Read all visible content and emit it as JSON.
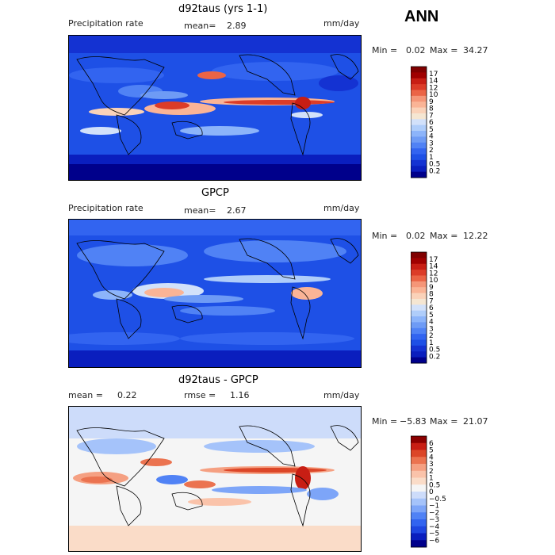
{
  "season": "ANN",
  "colors": {
    "precip_scale": [
      "#00008b",
      "#0a1ebe",
      "#1432d2",
      "#1e50e6",
      "#3264f0",
      "#5082f5",
      "#6e9bf5",
      "#8cb4fa",
      "#afcdfa",
      "#d2e1fa",
      "#f5e6d2",
      "#fad2b9",
      "#fab496",
      "#f59678",
      "#eb6446",
      "#dc3c28",
      "#c81e14",
      "#a00000",
      "#800000"
    ],
    "diff_scale": [
      "#00008b",
      "#0a1ebe",
      "#1e46e1",
      "#3264f0",
      "#5082f5",
      "#7da5f8",
      "#a5c3fa",
      "#cddcfa",
      "#f5f5f5",
      "#fadcc8",
      "#fac3aa",
      "#f5a082",
      "#eb7350",
      "#dc4628",
      "#c81e14",
      "#8b0000"
    ]
  },
  "panels": [
    {
      "title": "d92taus (yrs 1-1)",
      "left_label": "Precipitation rate",
      "stat1_label": "mean=",
      "stat1_value": "2.89",
      "units": "mm/day",
      "min_label": "Min =",
      "min_value": "0.02",
      "max_label": "Max =",
      "max_value": "34.27",
      "colorbar_ticks": [
        "17",
        "14",
        "12",
        "10",
        "9",
        "8",
        "7",
        "6",
        "5",
        "4",
        "3",
        "2",
        "1",
        "0.5",
        "0.2"
      ]
    },
    {
      "title": "GPCP",
      "left_label": "Precipitation rate",
      "stat1_label": "mean=",
      "stat1_value": "2.67",
      "units": "mm/day",
      "min_label": "Min =",
      "min_value": "0.02",
      "max_label": "Max =",
      "max_value": "12.22",
      "colorbar_ticks": [
        "17",
        "14",
        "12",
        "10",
        "9",
        "8",
        "7",
        "6",
        "5",
        "4",
        "3",
        "2",
        "1",
        "0.5",
        "0.2"
      ]
    },
    {
      "title": "d92taus - GPCP",
      "stat1_label": "mean =",
      "stat1_value": "0.22",
      "stat2_label": "rmse =",
      "stat2_value": "1.16",
      "units": "mm/day",
      "min_label": "Min =",
      "min_value": "−5.83",
      "max_label": "Max =",
      "max_value": "21.07",
      "colorbar_ticks": [
        "6",
        "5",
        "4",
        "3",
        "2",
        "1",
        "0.5",
        "0",
        "−0.5",
        "−1",
        "−2",
        "−3",
        "−4",
        "−5",
        "−6"
      ]
    }
  ],
  "chart_data": [
    {
      "type": "heatmap",
      "title": "d92taus (yrs 1-1)",
      "variable": "Precipitation rate",
      "units": "mm/day",
      "mean": 2.89,
      "min": 0.02,
      "max": 34.27,
      "levels": [
        0.2,
        0.5,
        1,
        2,
        3,
        4,
        5,
        6,
        7,
        8,
        9,
        10,
        12,
        14,
        17
      ]
    },
    {
      "type": "heatmap",
      "title": "GPCP",
      "variable": "Precipitation rate",
      "units": "mm/day",
      "mean": 2.67,
      "min": 0.02,
      "max": 12.22,
      "levels": [
        0.2,
        0.5,
        1,
        2,
        3,
        4,
        5,
        6,
        7,
        8,
        9,
        10,
        12,
        14,
        17
      ]
    },
    {
      "type": "heatmap",
      "title": "d92taus - GPCP",
      "units": "mm/day",
      "mean": 0.22,
      "rmse": 1.16,
      "min": -5.83,
      "max": 21.07,
      "levels": [
        -6,
        -5,
        -4,
        -3,
        -2,
        -1,
        -0.5,
        0,
        0.5,
        1,
        2,
        3,
        4,
        5,
        6
      ]
    }
  ]
}
